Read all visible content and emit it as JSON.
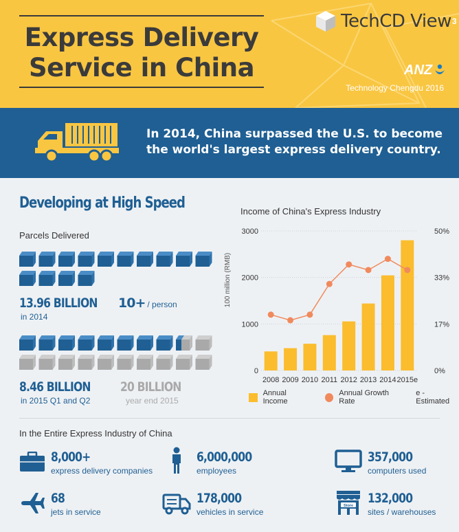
{
  "header": {
    "title_line1": "Express Delivery",
    "title_line2": "Service in China",
    "brand_name": "TechCD View",
    "brand_sup": "3",
    "sponsor": "ANZ",
    "subtitle": "Technology Chengdu 2016",
    "accent_color": "#f9c642"
  },
  "banner": {
    "line1": "In 2014, China surpassed the U.S. to become",
    "line2": "the world's largest express delivery country.",
    "icon": "truck-icon",
    "color": "#1f5f93"
  },
  "developing": {
    "title": "Developing at High Speed",
    "parcels_label": "Parcels Delivered",
    "stat_2014": {
      "value": "13.96 BILLION",
      "label": "in 2014"
    },
    "per_person": {
      "value": "10+",
      "label": "/ person"
    },
    "stat_2015": {
      "value": "8.46 BILLION",
      "label": "in 2015 Q1 and Q2"
    },
    "stat_2015_full": {
      "value": "20 BILLION",
      "label": "year end 2015"
    }
  },
  "chart_data": {
    "type": "bar",
    "title": "Income of China's Express Industry",
    "ylabel": "100 million (RMB)",
    "categories": [
      "2008",
      "2009",
      "2010",
      "2011",
      "2012",
      "2013",
      "2014",
      "2015e"
    ],
    "ylim": [
      0,
      3000
    ],
    "y_ticks": [
      "0",
      "1000",
      "2000",
      "3000"
    ],
    "y2lim": [
      0,
      50
    ],
    "y2_ticks": [
      "0%",
      "17%",
      "33%",
      "50%"
    ],
    "grid": true,
    "series": [
      {
        "name": "Annual Income",
        "type": "bar",
        "axis": "left",
        "color": "#fbbd2e",
        "values": [
          410,
          480,
          575,
          760,
          1055,
          1440,
          2045,
          2800
        ]
      },
      {
        "name": "Annual Growth Rate",
        "type": "line",
        "axis": "right",
        "color": "#f08a5d",
        "values": [
          20,
          18,
          20,
          31,
          38,
          36,
          40,
          36
        ]
      }
    ],
    "legend_note": "e - Estimated",
    "legend_position": "bottom"
  },
  "industry": {
    "title": "In the Entire Express Industry of China",
    "stats": [
      {
        "value": "8,000+",
        "label": "express delivery companies",
        "icon": "briefcase-icon"
      },
      {
        "value": "6,000,000",
        "label": "employees",
        "icon": "person-icon"
      },
      {
        "value": "357,000",
        "label": "computers used",
        "icon": "monitor-icon"
      },
      {
        "value": "68",
        "label": "jets in service",
        "icon": "airplane-icon"
      },
      {
        "value": "178,000",
        "label": "vehicles in service",
        "icon": "delivery-truck-icon"
      },
      {
        "value": "132,000",
        "label": "sites / warehouses",
        "icon": "store-icon"
      }
    ],
    "store_sign": "Store"
  }
}
